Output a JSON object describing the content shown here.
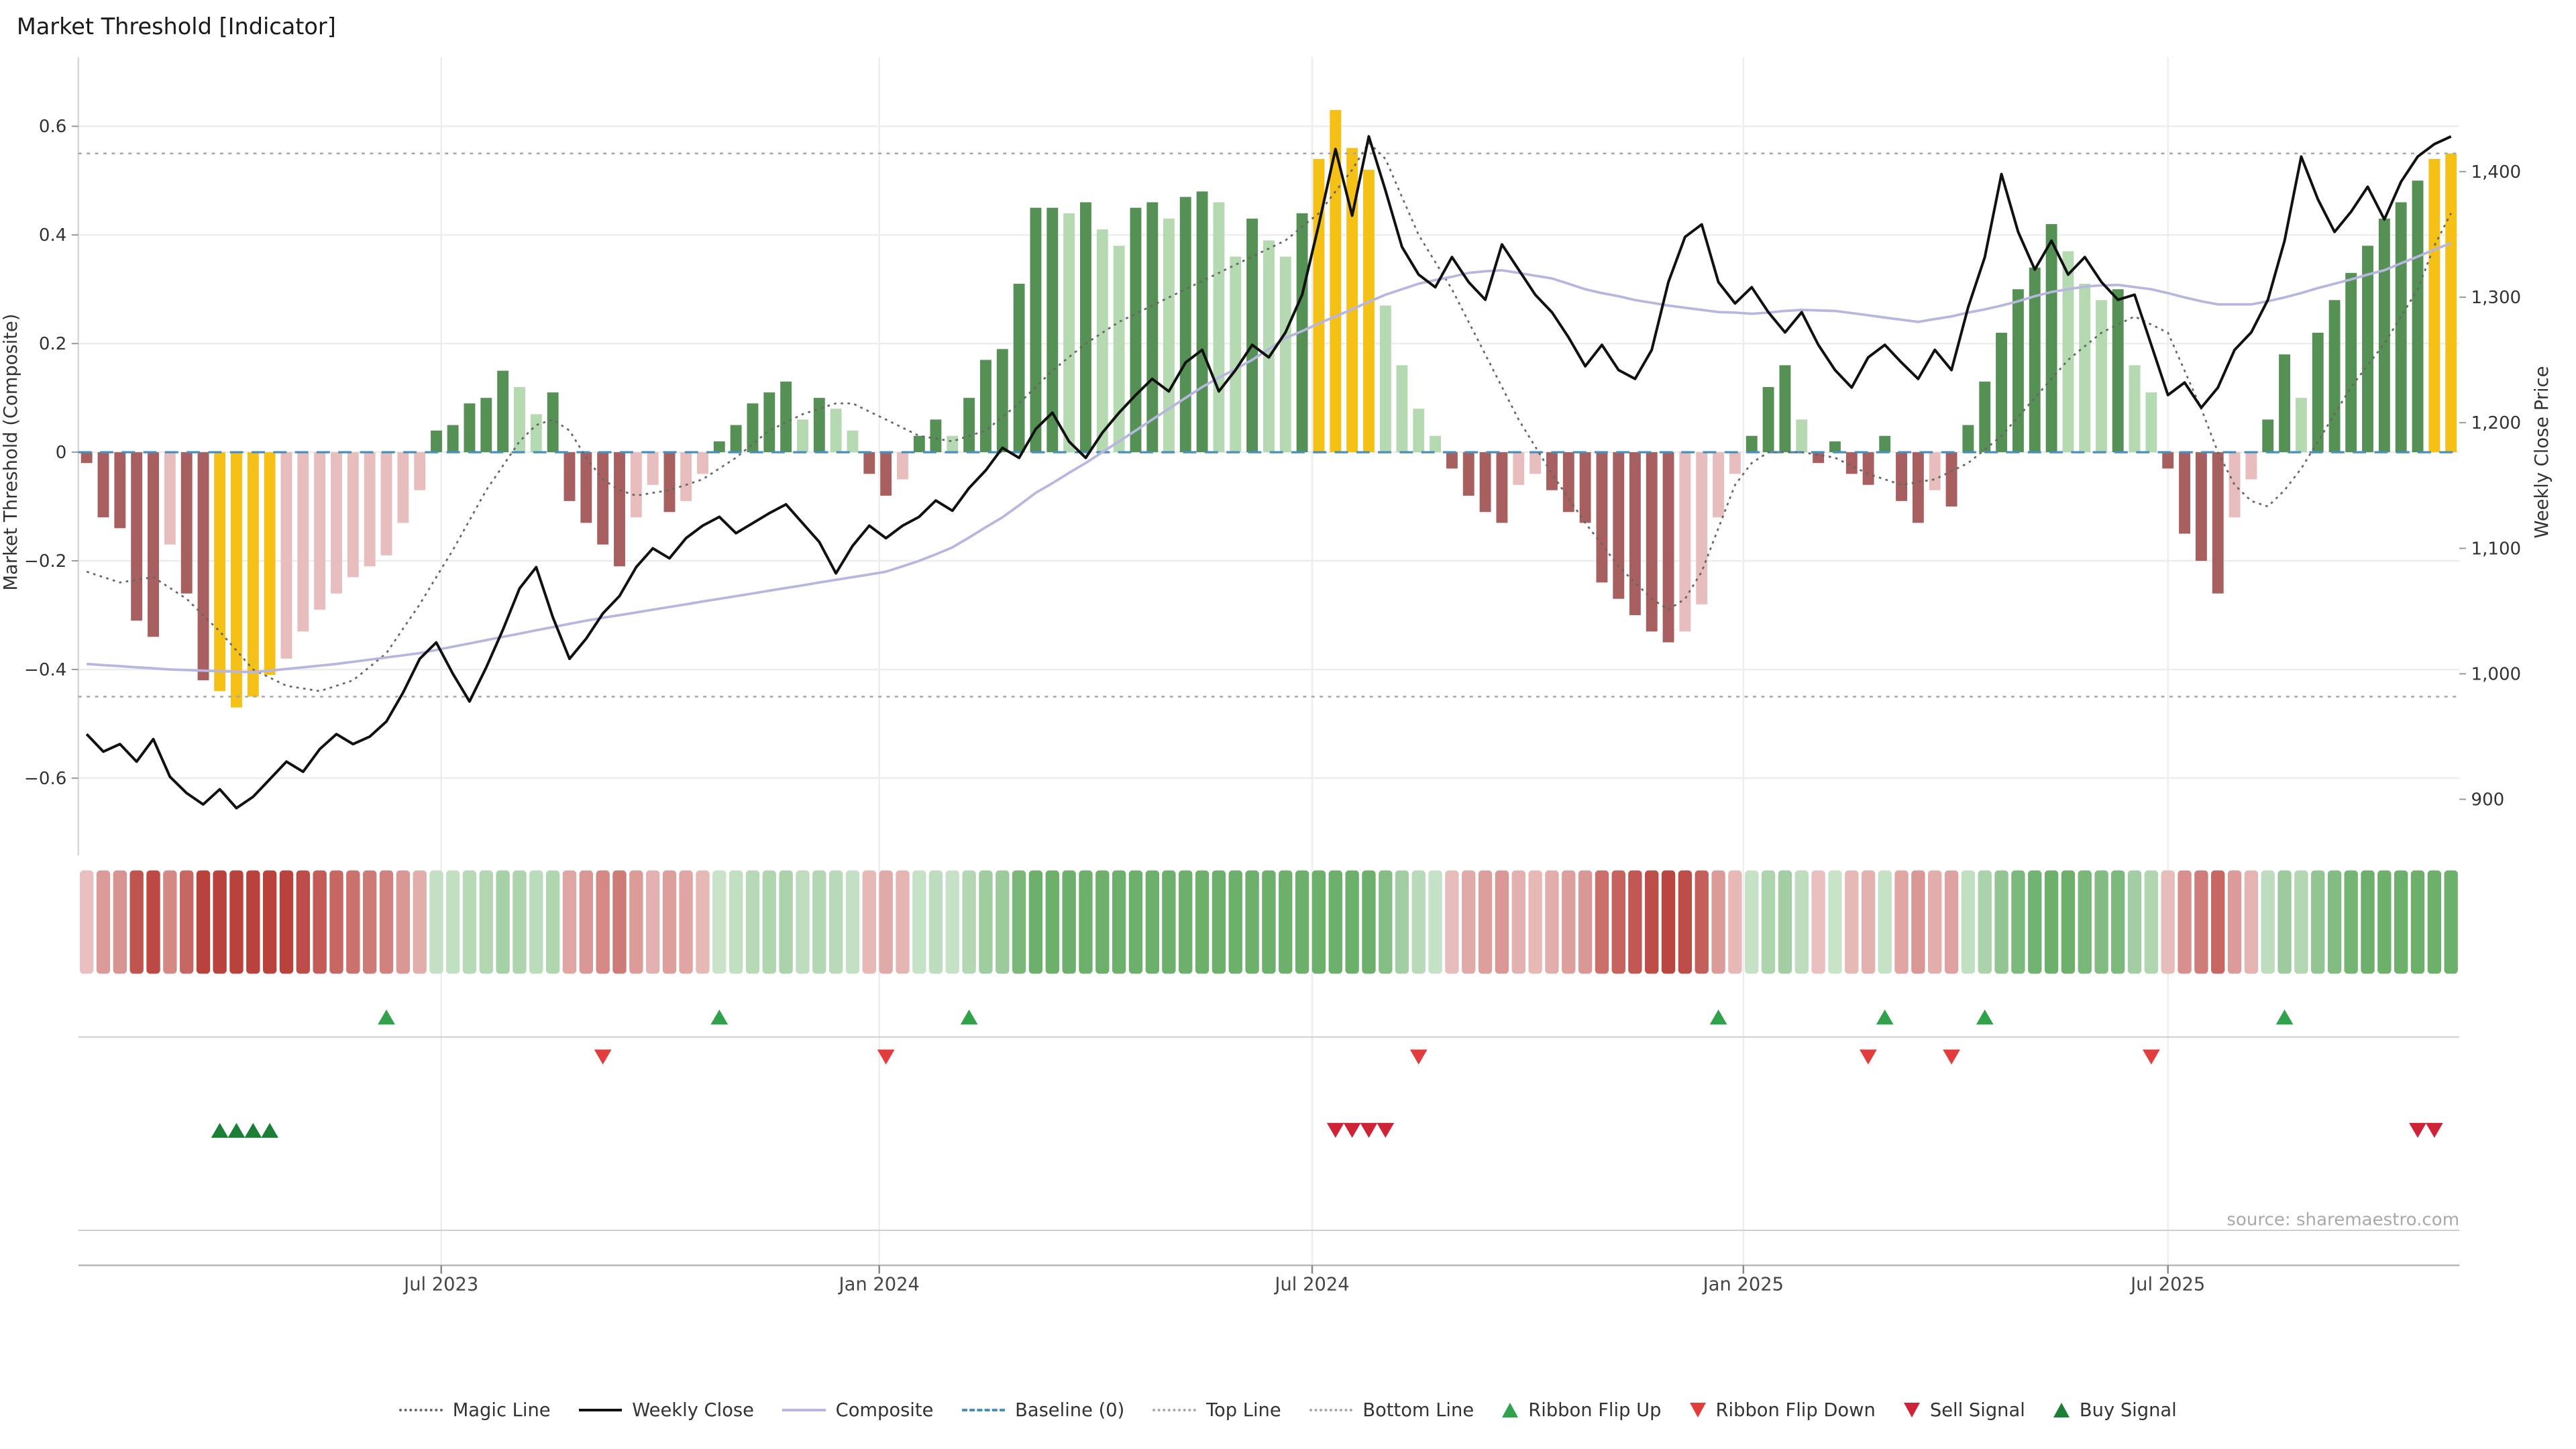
{
  "title": "Market Threshold [Indicator]",
  "source_note": "source: sharemaestro.com",
  "axes": {
    "left_label": "Market Threshold (Composite)",
    "right_label": "Weekly Close Price",
    "left_tick_labels": [
      "0.6",
      "0.4",
      "0.2",
      "0",
      "−0.2",
      "−0.4",
      "−0.6"
    ],
    "left_tick_values": [
      0.6,
      0.4,
      0.2,
      0,
      -0.2,
      -0.4,
      -0.6
    ],
    "right_tick_labels": [
      "1,400",
      "1,300",
      "1,200",
      "1,100",
      "1,000",
      "900"
    ],
    "right_tick_values": [
      1400,
      1300,
      1200,
      1100,
      1000,
      900
    ],
    "x_ticks": [
      {
        "label": "Jul 2023",
        "week": 21.3
      },
      {
        "label": "Jan 2024",
        "week": 47.6
      },
      {
        "label": "Jul 2024",
        "week": 73.6
      },
      {
        "label": "Jan 2025",
        "week": 99.5
      },
      {
        "label": "Jul 2025",
        "week": 125.0
      }
    ]
  },
  "chart_data": {
    "type": "bar+line",
    "frequency": "weekly",
    "weeks": 143,
    "title": "Market Threshold [Indicator]",
    "left_axis": "Market Threshold (Composite)",
    "right_axis": "Weekly Close Price",
    "top_line": 0.55,
    "bottom_line": -0.45,
    "baseline": 0,
    "threshold_bars": [
      -0.02,
      -0.12,
      -0.14,
      -0.31,
      -0.34,
      -0.17,
      -0.26,
      -0.42,
      -0.44,
      -0.47,
      -0.45,
      -0.41,
      -0.38,
      -0.33,
      -0.29,
      -0.26,
      -0.23,
      -0.21,
      -0.19,
      -0.13,
      -0.07,
      0.04,
      0.05,
      0.09,
      0.1,
      0.15,
      0.12,
      0.07,
      0.11,
      -0.09,
      -0.13,
      -0.17,
      -0.21,
      -0.12,
      -0.06,
      -0.11,
      -0.09,
      -0.04,
      0.02,
      0.05,
      0.09,
      0.11,
      0.13,
      0.06,
      0.1,
      0.08,
      0.04,
      -0.04,
      -0.08,
      -0.05,
      0.03,
      0.06,
      0.03,
      0.1,
      0.17,
      0.19,
      0.31,
      0.45,
      0.45,
      0.44,
      0.46,
      0.41,
      0.38,
      0.45,
      0.46,
      0.43,
      0.47,
      0.48,
      0.46,
      0.36,
      0.43,
      0.39,
      0.36,
      0.44,
      0.54,
      0.63,
      0.56,
      0.52,
      0.27,
      0.16,
      0.08,
      0.03,
      -0.03,
      -0.08,
      -0.11,
      -0.13,
      -0.06,
      -0.04,
      -0.07,
      -0.11,
      -0.13,
      -0.24,
      -0.27,
      -0.3,
      -0.33,
      -0.35,
      -0.33,
      -0.28,
      -0.12,
      -0.04,
      0.03,
      0.12,
      0.16,
      0.06,
      -0.02,
      0.02,
      -0.04,
      -0.06,
      0.03,
      -0.09,
      -0.13,
      -0.07,
      -0.1,
      0.05,
      0.13,
      0.22,
      0.3,
      0.34,
      0.42,
      0.37,
      0.31,
      0.28,
      0.3,
      0.16,
      0.11,
      -0.03,
      -0.15,
      -0.2,
      -0.26,
      -0.12,
      -0.05,
      0.06,
      0.18,
      0.1,
      0.22,
      0.28,
      0.33,
      0.38,
      0.43,
      0.46,
      0.5,
      0.54,
      0.55
    ],
    "highlight_bars_yellow": [
      8,
      9,
      10,
      11,
      74,
      75,
      76,
      77,
      141,
      142
    ],
    "weekly_close": [
      952,
      938,
      944,
      930,
      948,
      918,
      905,
      896,
      908,
      893,
      902,
      916,
      930,
      922,
      940,
      952,
      944,
      950,
      962,
      985,
      1012,
      1025,
      1000,
      978,
      1005,
      1035,
      1068,
      1085,
      1045,
      1012,
      1028,
      1048,
      1062,
      1085,
      1100,
      1092,
      1108,
      1118,
      1125,
      1112,
      1120,
      1128,
      1135,
      1120,
      1105,
      1080,
      1102,
      1118,
      1108,
      1118,
      1125,
      1138,
      1130,
      1148,
      1162,
      1180,
      1172,
      1195,
      1208,
      1185,
      1172,
      1192,
      1208,
      1222,
      1235,
      1225,
      1248,
      1258,
      1225,
      1242,
      1262,
      1252,
      1272,
      1302,
      1358,
      1418,
      1365,
      1428,
      1385,
      1340,
      1318,
      1308,
      1332,
      1312,
      1298,
      1342,
      1322,
      1302,
      1288,
      1268,
      1245,
      1262,
      1242,
      1235,
      1258,
      1312,
      1348,
      1358,
      1312,
      1295,
      1308,
      1288,
      1272,
      1288,
      1262,
      1242,
      1228,
      1252,
      1262,
      1248,
      1235,
      1258,
      1242,
      1292,
      1332,
      1398,
      1352,
      1322,
      1345,
      1318,
      1332,
      1312,
      1298,
      1302,
      1262,
      1222,
      1232,
      1212,
      1228,
      1258,
      1272,
      1298,
      1345,
      1412,
      1378,
      1352,
      1368,
      1388,
      1362,
      1392,
      1412,
      1422,
      1428
    ],
    "composite": [
      -0.39,
      -0.392,
      -0.394,
      -0.396,
      -0.398,
      -0.4,
      -0.401,
      -0.402,
      -0.403,
      -0.404,
      -0.405,
      -0.402,
      -0.399,
      -0.396,
      -0.393,
      -0.39,
      -0.386,
      -0.382,
      -0.378,
      -0.374,
      -0.37,
      -0.364,
      -0.358,
      -0.352,
      -0.346,
      -0.34,
      -0.334,
      -0.328,
      -0.322,
      -0.316,
      -0.31,
      -0.305,
      -0.3,
      -0.295,
      -0.29,
      -0.285,
      -0.28,
      -0.275,
      -0.27,
      -0.265,
      -0.26,
      -0.255,
      -0.25,
      -0.245,
      -0.24,
      -0.235,
      -0.23,
      -0.225,
      -0.22,
      -0.21,
      -0.2,
      -0.188,
      -0.175,
      -0.157,
      -0.138,
      -0.12,
      -0.098,
      -0.075,
      -0.057,
      -0.038,
      -0.02,
      0.0,
      0.02,
      0.04,
      0.06,
      0.08,
      0.1,
      0.12,
      0.137,
      0.153,
      0.17,
      0.19,
      0.21,
      0.223,
      0.237,
      0.25,
      0.263,
      0.277,
      0.29,
      0.3,
      0.31,
      0.317,
      0.323,
      0.33,
      0.333,
      0.335,
      0.33,
      0.325,
      0.32,
      0.31,
      0.3,
      0.293,
      0.287,
      0.28,
      0.275,
      0.27,
      0.266,
      0.262,
      0.258,
      0.257,
      0.255,
      0.257,
      0.26,
      0.262,
      0.261,
      0.26,
      0.256,
      0.252,
      0.248,
      0.244,
      0.24,
      0.245,
      0.25,
      0.257,
      0.263,
      0.27,
      0.278,
      0.287,
      0.295,
      0.3,
      0.305,
      0.307,
      0.308,
      0.304,
      0.3,
      0.293,
      0.285,
      0.278,
      0.272,
      0.272,
      0.272,
      0.278,
      0.285,
      0.293,
      0.302,
      0.31,
      0.318,
      0.327,
      0.335,
      0.348,
      0.36,
      0.373,
      0.385
    ],
    "magic_line": [
      -0.22,
      -0.23,
      -0.24,
      -0.235,
      -0.23,
      -0.25,
      -0.27,
      -0.3,
      -0.33,
      -0.365,
      -0.4,
      -0.415,
      -0.43,
      -0.435,
      -0.44,
      -0.43,
      -0.42,
      -0.395,
      -0.37,
      -0.325,
      -0.28,
      -0.23,
      -0.18,
      -0.125,
      -0.07,
      -0.025,
      0.02,
      0.05,
      0.06,
      0.04,
      -0.01,
      -0.05,
      -0.07,
      -0.08,
      -0.075,
      -0.07,
      -0.06,
      -0.05,
      -0.03,
      -0.01,
      0.015,
      0.04,
      0.055,
      0.07,
      0.08,
      0.09,
      0.09,
      0.075,
      0.06,
      0.045,
      0.03,
      0.025,
      0.02,
      0.03,
      0.04,
      0.065,
      0.09,
      0.12,
      0.15,
      0.175,
      0.2,
      0.22,
      0.24,
      0.255,
      0.27,
      0.285,
      0.3,
      0.315,
      0.33,
      0.345,
      0.36,
      0.375,
      0.39,
      0.415,
      0.44,
      0.48,
      0.52,
      0.57,
      0.54,
      0.47,
      0.4,
      0.35,
      0.3,
      0.24,
      0.18,
      0.12,
      0.06,
      0.01,
      -0.04,
      -0.085,
      -0.13,
      -0.17,
      -0.21,
      -0.24,
      -0.27,
      -0.29,
      -0.27,
      -0.22,
      -0.14,
      -0.06,
      -0.02,
      0.0,
      0.0,
      0.0,
      -0.005,
      -0.01,
      -0.025,
      -0.04,
      -0.05,
      -0.06,
      -0.055,
      -0.05,
      -0.035,
      -0.02,
      0.005,
      0.03,
      0.065,
      0.1,
      0.135,
      0.17,
      0.195,
      0.22,
      0.235,
      0.25,
      0.235,
      0.22,
      0.15,
      0.08,
      0.0,
      -0.06,
      -0.09,
      -0.1,
      -0.07,
      -0.03,
      0.02,
      0.07,
      0.12,
      0.16,
      0.2,
      0.25,
      0.3,
      0.38,
      0.44
    ]
  },
  "signals": {
    "ribbon_flip_up_weeks": [
      18,
      38,
      53,
      98,
      108,
      114,
      132
    ],
    "ribbon_flip_down_weeks": [
      31,
      48,
      80,
      107,
      112,
      124
    ],
    "buy_signal_weeks": [
      8,
      9,
      10,
      11
    ],
    "sell_signal_weeks": [
      75,
      76,
      77,
      78,
      140,
      141
    ]
  },
  "colors": {
    "bar_pos_strong": "#559154",
    "bar_pos_light": "#b5d9b0",
    "bar_neg_strong": "#a85f5f",
    "bar_neg_light": "#e8bdbd",
    "bar_highlight": "#f5c116",
    "weekly_close": "#111111",
    "composite": "#b6b6e0",
    "baseline": "#4a8fbb",
    "magic_line": "#666666",
    "top_bottom_line": "#a6a6a6",
    "grid": "#ededed",
    "separator": "#cfcfcf",
    "axis_line": "#b5b5b5",
    "signal_flip_up": "#31a24c",
    "signal_flip_down": "#e23d3d",
    "signal_buy": "#1c7f36",
    "signal_sell": "#cf2437"
  },
  "legend": [
    {
      "label": "Magic Line",
      "marker": "dotted-line",
      "color": "#666666"
    },
    {
      "label": "Weekly Close",
      "marker": "solid-line",
      "color": "#111111"
    },
    {
      "label": "Composite",
      "marker": "solid-line",
      "color": "#b6b6e0"
    },
    {
      "label": "Baseline (0)",
      "marker": "dashed-line",
      "color": "#4a8fbb"
    },
    {
      "label": "Top Line",
      "marker": "dotted-line",
      "color": "#a6a6a6"
    },
    {
      "label": "Bottom Line",
      "marker": "dotted-line",
      "color": "#a6a6a6"
    },
    {
      "label": "Ribbon Flip Up",
      "marker": "triangle-up",
      "color": "#31a24c"
    },
    {
      "label": "Ribbon Flip Down",
      "marker": "triangle-down",
      "color": "#e23d3d"
    },
    {
      "label": "Sell Signal",
      "marker": "triangle-down",
      "color": "#cf2437"
    },
    {
      "label": "Buy Signal",
      "marker": "triangle-up",
      "color": "#1c7f36"
    }
  ]
}
